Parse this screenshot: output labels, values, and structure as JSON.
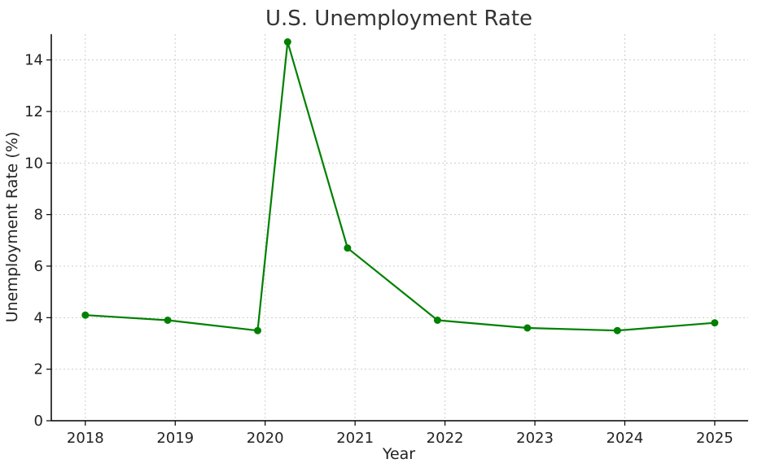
{
  "chart_data": {
    "type": "line",
    "title": "U.S. Unemployment Rate",
    "xlabel": "Year",
    "ylabel": "Unemployment Rate (%)",
    "x_ticks": [
      "2018",
      "2019",
      "2020",
      "2021",
      "2022",
      "2023",
      "2024",
      "2025"
    ],
    "y_ticks": [
      "0",
      "2",
      "4",
      "6",
      "8",
      "10",
      "12",
      "14"
    ],
    "xlim": [
      "2017-08-15",
      "2025-05-15"
    ],
    "ylim": [
      0,
      15
    ],
    "grid": true,
    "series": [
      {
        "color": "#008000",
        "points": [
          {
            "x": "2018-01-01",
            "y": 4.1
          },
          {
            "x": "2018-12-01",
            "y": 3.9
          },
          {
            "x": "2019-12-01",
            "y": 3.5
          },
          {
            "x": "2020-04-01",
            "y": 14.7
          },
          {
            "x": "2020-12-01",
            "y": 6.7
          },
          {
            "x": "2021-12-01",
            "y": 3.9
          },
          {
            "x": "2022-12-01",
            "y": 3.6
          },
          {
            "x": "2023-12-01",
            "y": 3.5
          },
          {
            "x": "2025-01-01",
            "y": 3.8
          }
        ]
      }
    ]
  }
}
